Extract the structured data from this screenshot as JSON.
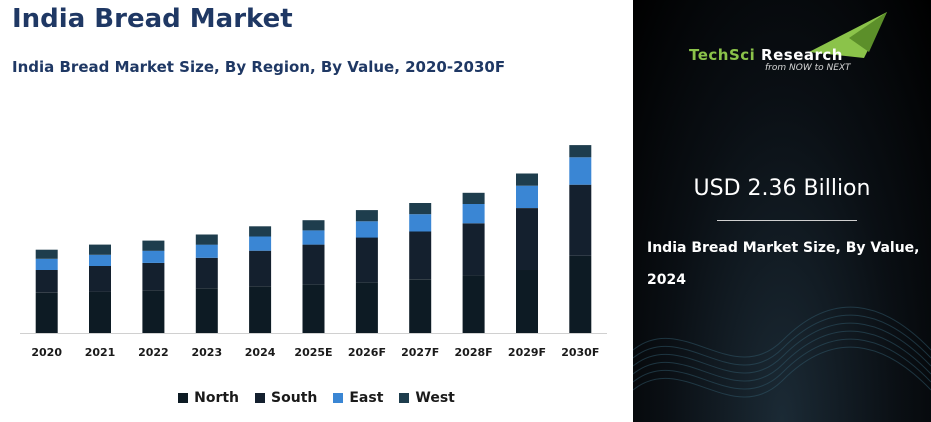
{
  "header": {
    "title": "India Bread Market",
    "subtitle": "India Bread Market Size, By Region, By Value, 2020-2030F"
  },
  "chart_data": {
    "type": "bar",
    "stacked": true,
    "categories": [
      "2020",
      "2021",
      "2022",
      "2023",
      "2024",
      "2025E",
      "2026F",
      "2027F",
      "2028F",
      "2029F",
      "2030F"
    ],
    "series": [
      {
        "name": "North",
        "color": "#0d1b24",
        "values": [
          40,
          41,
          42,
          44,
          46,
          48,
          50,
          53,
          57,
          62,
          76
        ]
      },
      {
        "name": "South",
        "color": "#14202e",
        "values": [
          22,
          25,
          27,
          30,
          35,
          39,
          44,
          47,
          51,
          61,
          70
        ]
      },
      {
        "name": "East",
        "color": "#3a86d4",
        "values": [
          11,
          11,
          12,
          13,
          14,
          14,
          16,
          17,
          19,
          22,
          27
        ]
      },
      {
        "name": "West",
        "color": "#1e3d4d",
        "values": [
          9,
          10,
          10,
          10,
          10,
          10,
          11,
          11,
          11,
          12,
          12
        ]
      }
    ],
    "ylim": [
      0,
      190
    ],
    "legend_position": "bottom",
    "grid": false
  },
  "sidebar": {
    "logo_part1": "TechSci",
    "logo_part2": " Research",
    "logo_tagline": "from NOW to NEXT",
    "value": "USD 2.36 Billion",
    "value_label": "India Bread Market Size, By Value, 2024"
  }
}
